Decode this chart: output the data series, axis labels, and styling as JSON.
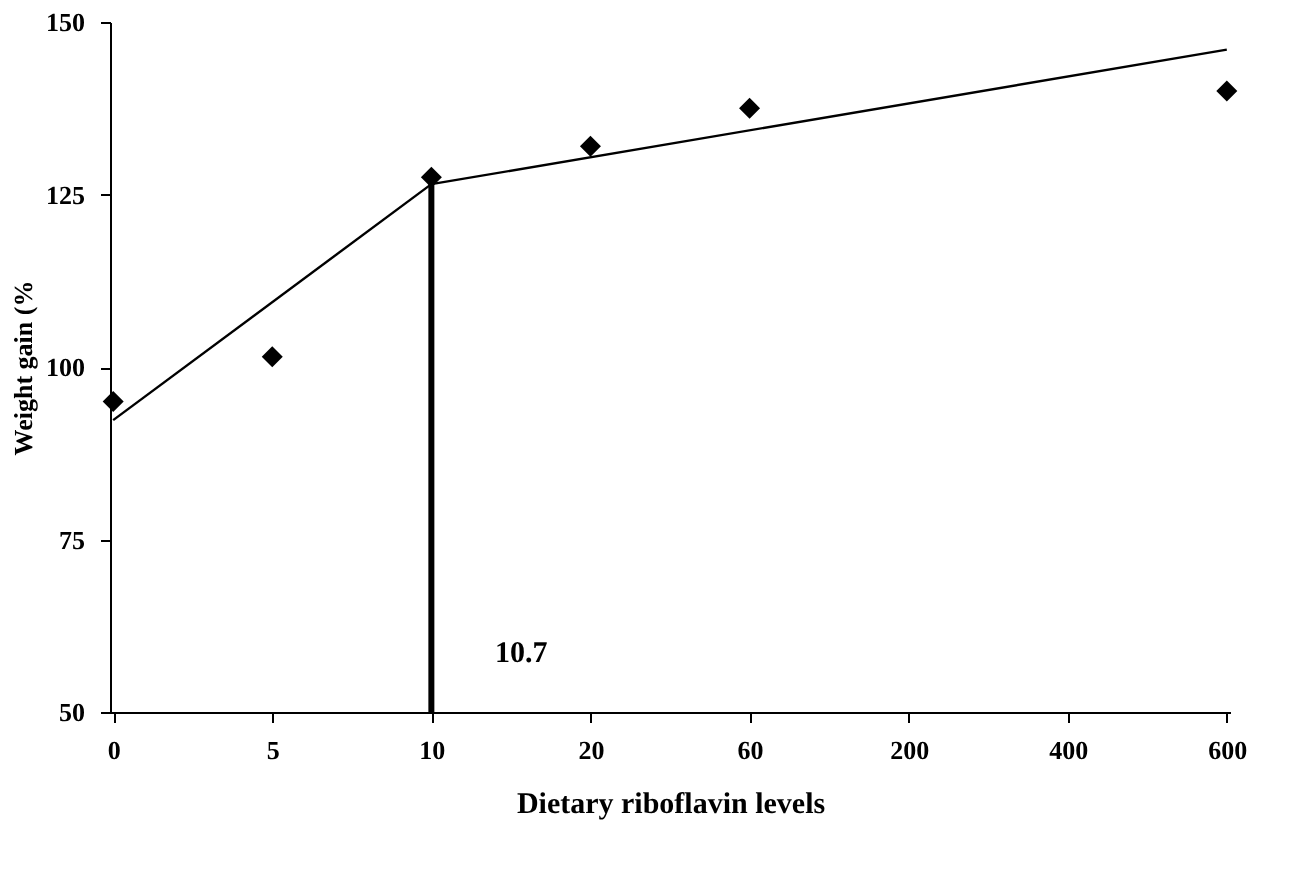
{
  "chart_data": {
    "type": "scatter",
    "xlabel": "Dietary riboflavin levels",
    "ylabel": "Weight gain (%",
    "categories": [
      "0",
      "5",
      "10",
      "20",
      "60",
      "200",
      "400",
      "600"
    ],
    "series": [
      {
        "color": "#000000",
        "marker": "diamond",
        "values": [
          95,
          101.5,
          127.5,
          132,
          137.5,
          null,
          null,
          140
        ]
      },
      {
        "type": "line",
        "color": "#000000",
        "marker": "none",
        "x": [
          "0",
          "10"
        ],
        "values": [
          92.3,
          126.5
        ]
      },
      {
        "type": "line",
        "color": "#000000",
        "marker": "none",
        "x": [
          "10",
          "600"
        ],
        "values": [
          126.5,
          146
        ]
      }
    ],
    "ref_lines": [
      {
        "axis": "x",
        "value": "10",
        "color": "#000000"
      }
    ],
    "annotations": [
      {
        "text": "10.7",
        "x": "10",
        "y": 50
      }
    ],
    "ylim": [
      50,
      150
    ],
    "yticks": [
      50,
      75,
      100,
      125,
      150
    ],
    "line_style": "solid",
    "grid": false
  }
}
